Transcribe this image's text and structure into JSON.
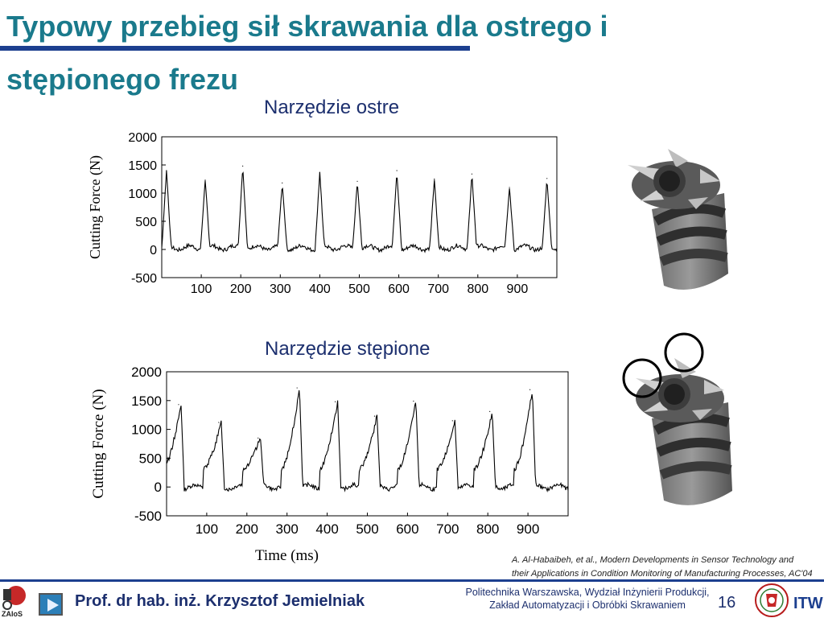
{
  "slide": {
    "title_line1": "Typowy przebieg sił skrawania dla ostrego i",
    "title_line2": "stępionego frezu",
    "page_number": "16"
  },
  "footer": {
    "author": "Prof. dr hab. inż. Krzysztof Jemielniak",
    "institution_line1": "Politechnika Warszawska, Wydział Inżynierii Produkcji,",
    "institution_line2": "Zakład Automatyzacji i Obróbki Skrawaniem",
    "logo_left_text": "ZAIoS",
    "logo_right_text": "ITW"
  },
  "citation": {
    "line1": "A. Al-Habaibeh, et al., Modern Developments in Sensor Technology and",
    "line2": "their Applications in Condition Monitoring of Manufacturing Processes, AC'04"
  },
  "colors": {
    "title": "#1a7a8c",
    "accent_rule": "#1c3f8f",
    "text_dark_blue": "#1c2f6e",
    "signal": "#000000",
    "highlight_circle": "#000000"
  },
  "images": {
    "sharp_tool": "end-mill-photo-sharp",
    "dull_tool": "end-mill-photo-dull-with-circled-worn-teeth"
  },
  "chart_data": [
    {
      "type": "line",
      "title": "Narzędzie ostre",
      "xlabel": "",
      "ylabel": "Cutting Force (N)",
      "xlim": [
        0,
        1000
      ],
      "ylim": [
        -500,
        2000
      ],
      "xticks": [
        "100",
        "200",
        "300",
        "400",
        "500",
        "600",
        "700",
        "800",
        "900"
      ],
      "yticks": [
        "2000",
        "1500",
        "1000",
        "500",
        "0",
        "-500"
      ],
      "series": [
        {
          "peaks": [
            {
              "x": 12,
              "y": 1400
            },
            {
              "x": 110,
              "y": 1230
            },
            {
              "x": 205,
              "y": 1480
            },
            {
              "x": 305,
              "y": 1180
            },
            {
              "x": 400,
              "y": 1360
            },
            {
              "x": 495,
              "y": 1210
            },
            {
              "x": 595,
              "y": 1400
            },
            {
              "x": 690,
              "y": 1250
            },
            {
              "x": 785,
              "y": 1340
            },
            {
              "x": 880,
              "y": 1100
            },
            {
              "x": 975,
              "y": 1260
            }
          ],
          "baseline": 30
        }
      ]
    },
    {
      "type": "line",
      "title": "Narzędzie stępione",
      "xlabel": "Time (ms)",
      "ylabel": "Cutting Force (N)",
      "xlim": [
        0,
        1000
      ],
      "ylim": [
        -500,
        2000
      ],
      "xticks": [
        "100",
        "200",
        "300",
        "400",
        "500",
        "600",
        "700",
        "800",
        "900"
      ],
      "yticks": [
        "2000",
        "1500",
        "1000",
        "500",
        "0",
        "-500"
      ],
      "series": [
        {
          "peaks": [
            {
              "x": 30,
              "y": 1430
            },
            {
              "x": 130,
              "y": 1120
            },
            {
              "x": 228,
              "y": 850
            },
            {
              "x": 325,
              "y": 1720
            },
            {
              "x": 420,
              "y": 1480
            },
            {
              "x": 518,
              "y": 1230
            },
            {
              "x": 615,
              "y": 1490
            },
            {
              "x": 712,
              "y": 1150
            },
            {
              "x": 805,
              "y": 1310
            },
            {
              "x": 905,
              "y": 1690
            }
          ],
          "baseline": 0
        }
      ]
    }
  ]
}
